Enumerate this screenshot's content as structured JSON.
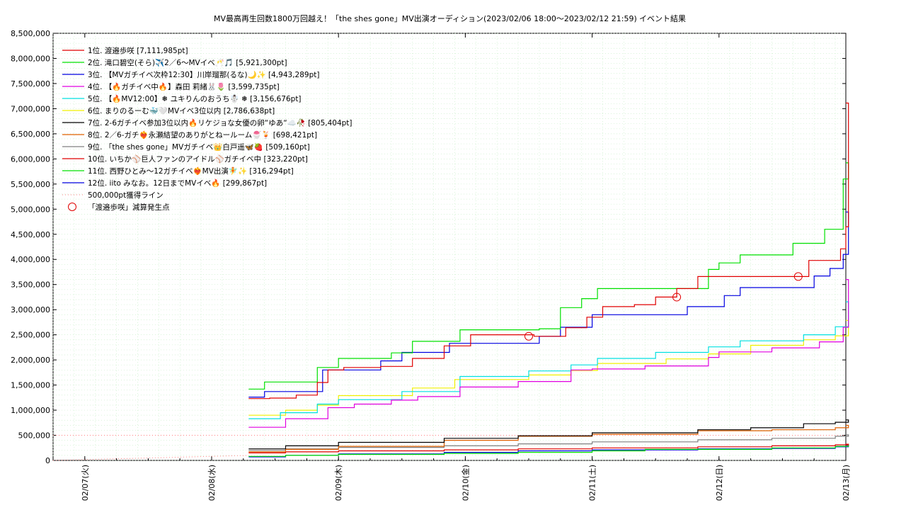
{
  "chart_data": {
    "type": "line",
    "title": "MV最高再生回数1800万回越え！「the shes gone」MV出演オーディション(2023/02/06 18:00〜2023/02/12 21:59)",
    "subtitle": "イベント結果",
    "xlabel": "",
    "ylabel": "",
    "x_start": "2023/02/06 18:00",
    "x_end": "2023/02/12 21:59",
    "xlim": [
      "2023/02/06 18:00",
      "2023/02/13 00:00"
    ],
    "ylim": [
      0,
      8500000
    ],
    "yticks": [
      "0",
      "500,000",
      "1,000,000",
      "1,500,000",
      "2,000,000",
      "2,500,000",
      "3,000,000",
      "3,500,000",
      "4,000,000",
      "4,500,000",
      "5,000,000",
      "5,500,000",
      "6,000,000",
      "6,500,000",
      "7,000,000",
      "7,500,000",
      "8,000,000",
      "8,500,000"
    ],
    "xticks": [
      {
        "label": "02/07(火)",
        "x": "2023/02/07 00:00"
      },
      {
        "label": "02/08(水)",
        "x": "2023/02/08 00:00"
      },
      {
        "label": "02/09(木)",
        "x": "2023/02/09 00:00"
      },
      {
        "label": "02/10(金)",
        "x": "2023/02/10 00:00"
      },
      {
        "label": "02/11(土)",
        "x": "2023/02/11 00:00"
      },
      {
        "label": "02/12(日)",
        "x": "2023/02/12 00:00"
      },
      {
        "label": "02/13(月)",
        "x": "2023/02/13 00:00"
      }
    ],
    "grid": true,
    "legend_position": "top-left",
    "series": [
      {
        "name": "1位. 渡邉歩咲 [7,111,985pt]",
        "color": "#e00000",
        "points": [
          [
            "2023/02/08 07:00",
            1230000
          ],
          [
            "2023/02/08 11:00",
            1240000
          ],
          [
            "2023/02/08 16:00",
            1300000
          ],
          [
            "2023/02/08 20:00",
            1550000
          ],
          [
            "2023/02/08 22:00",
            1800000
          ],
          [
            "2023/02/09 01:00",
            1850000
          ],
          [
            "2023/02/09 08:00",
            1870000
          ],
          [
            "2023/02/09 14:00",
            2030000
          ],
          [
            "2023/02/09 20:00",
            2280000
          ],
          [
            "2023/02/10 01:00",
            2500000
          ],
          [
            "2023/02/10 13:00",
            2470000
          ],
          [
            "2023/02/10 19:00",
            2640000
          ],
          [
            "2023/02/10 23:00",
            2850000
          ],
          [
            "2023/02/11 02:00",
            3060000
          ],
          [
            "2023/02/11 08:00",
            3100000
          ],
          [
            "2023/02/11 12:00",
            3250000
          ],
          [
            "2023/02/11 16:00",
            3420000
          ],
          [
            "2023/02/11 20:00",
            3660000
          ],
          [
            "2023/02/12 06:00",
            3660000
          ],
          [
            "2023/02/12 15:00",
            3660000
          ],
          [
            "2023/02/12 17:00",
            3980000
          ],
          [
            "2023/02/12 23:00",
            4210000
          ],
          [
            "2023/02/13 00:00",
            4650000
          ],
          [
            "2023/02/13 00:30",
            7111985
          ]
        ]
      },
      {
        "name": "2位. 滝口碧空(そら)✈️2／6〜MVイベ🥂🎵 [5,921,300pt]",
        "color": "#00e000",
        "points": [
          [
            "2023/02/08 07:00",
            1420000
          ],
          [
            "2023/02/08 10:00",
            1560000
          ],
          [
            "2023/02/08 20:00",
            1850000
          ],
          [
            "2023/02/09 00:00",
            2030000
          ],
          [
            "2023/02/09 10:00",
            2140000
          ],
          [
            "2023/02/09 14:00",
            2370000
          ],
          [
            "2023/02/09 23:00",
            2600000
          ],
          [
            "2023/02/10 14:00",
            2620000
          ],
          [
            "2023/02/10 18:00",
            3040000
          ],
          [
            "2023/02/10 22:00",
            3220000
          ],
          [
            "2023/02/11 01:00",
            3420000
          ],
          [
            "2023/02/11 22:00",
            3800000
          ],
          [
            "2023/02/12 00:00",
            3930000
          ],
          [
            "2023/02/12 04:00",
            4090000
          ],
          [
            "2023/02/12 14:00",
            4320000
          ],
          [
            "2023/02/12 20:00",
            4600000
          ],
          [
            "2023/02/12 23:30",
            5600000
          ],
          [
            "2023/02/13 00:30",
            5921300
          ]
        ]
      },
      {
        "name": "3位. 【MVガチイベ次枠12:30】川岸瑠那(るな)🌙✨ [4,943,289pt]",
        "color": "#0000e0",
        "points": [
          [
            "2023/02/08 07:00",
            1260000
          ],
          [
            "2023/02/08 10:00",
            1370000
          ],
          [
            "2023/02/08 21:00",
            1800000
          ],
          [
            "2023/02/09 08:00",
            1980000
          ],
          [
            "2023/02/09 12:00",
            2150000
          ],
          [
            "2023/02/09 21:00",
            2330000
          ],
          [
            "2023/02/10 14:00",
            2470000
          ],
          [
            "2023/02/10 18:00",
            2650000
          ],
          [
            "2023/02/11 00:00",
            2900000
          ],
          [
            "2023/02/11 18:00",
            3060000
          ],
          [
            "2023/02/12 01:00",
            3280000
          ],
          [
            "2023/02/12 04:00",
            3440000
          ],
          [
            "2023/02/12 18:00",
            3670000
          ],
          [
            "2023/02/12 21:00",
            3820000
          ],
          [
            "2023/02/12 23:30",
            4100000
          ],
          [
            "2023/02/13 00:30",
            4943289
          ]
        ]
      },
      {
        "name": "4位. 【🔥ガチイベ中🔥】森田 莉緒🐰🌷 [3,599,735pt]",
        "color": "#e000e0",
        "points": [
          [
            "2023/02/08 07:00",
            660000
          ],
          [
            "2023/02/08 14:00",
            830000
          ],
          [
            "2023/02/08 22:00",
            1050000
          ],
          [
            "2023/02/09 03:00",
            1120000
          ],
          [
            "2023/02/09 10:00",
            1200000
          ],
          [
            "2023/02/09 15:00",
            1270000
          ],
          [
            "2023/02/09 23:00",
            1460000
          ],
          [
            "2023/02/10 10:00",
            1570000
          ],
          [
            "2023/02/10 20:00",
            1800000
          ],
          [
            "2023/02/11 00:00",
            1820000
          ],
          [
            "2023/02/11 10:00",
            1880000
          ],
          [
            "2023/02/11 22:00",
            2050000
          ],
          [
            "2023/02/12 00:00",
            2160000
          ],
          [
            "2023/02/12 10:00",
            2240000
          ],
          [
            "2023/02/12 19:00",
            2360000
          ],
          [
            "2023/02/12 23:30",
            2650000
          ],
          [
            "2023/02/13 00:30",
            3599735
          ]
        ]
      },
      {
        "name": "5位. 【🔥MV12:00】❅ ユキりんのおうち☃️ ❅ [3,156,676pt]",
        "color": "#00e0e0",
        "points": [
          [
            "2023/02/08 07:00",
            830000
          ],
          [
            "2023/02/08 13:00",
            950000
          ],
          [
            "2023/02/08 20:00",
            1120000
          ],
          [
            "2023/02/09 00:00",
            1210000
          ],
          [
            "2023/02/09 12:00",
            1370000
          ],
          [
            "2023/02/09 23:00",
            1670000
          ],
          [
            "2023/02/10 12:00",
            1780000
          ],
          [
            "2023/02/10 20:00",
            1900000
          ],
          [
            "2023/02/11 01:00",
            2030000
          ],
          [
            "2023/02/11 12:00",
            2150000
          ],
          [
            "2023/02/11 22:00",
            2260000
          ],
          [
            "2023/02/12 04:00",
            2380000
          ],
          [
            "2023/02/12 16:00",
            2500000
          ],
          [
            "2023/02/12 22:00",
            2660000
          ],
          [
            "2023/02/13 00:30",
            3156676
          ]
        ]
      },
      {
        "name": "6位. まりのるーむ🐳🤍MVイベ3位以内 [2,786,638pt]",
        "color": "#f0f000",
        "points": [
          [
            "2023/02/08 07:00",
            900000
          ],
          [
            "2023/02/08 14:00",
            1000000
          ],
          [
            "2023/02/08 20:00",
            1100000
          ],
          [
            "2023/02/09 00:00",
            1290000
          ],
          [
            "2023/02/09 14:00",
            1440000
          ],
          [
            "2023/02/09 22:00",
            1610000
          ],
          [
            "2023/02/10 12:00",
            1700000
          ],
          [
            "2023/02/10 20:00",
            1790000
          ],
          [
            "2023/02/11 01:00",
            1930000
          ],
          [
            "2023/02/11 14:00",
            2020000
          ],
          [
            "2023/02/11 22:00",
            2120000
          ],
          [
            "2023/02/12 06:00",
            2290000
          ],
          [
            "2023/02/12 16:00",
            2400000
          ],
          [
            "2023/02/12 22:00",
            2480000
          ],
          [
            "2023/02/13 00:30",
            2786638
          ]
        ]
      },
      {
        "name": "7位. 2-6ガチイベ参加3位以内🔥リケジョな女優の卵“ゆあ“☁️🥀 [805,404pt]",
        "color": "#000000",
        "points": [
          [
            "2023/02/08 07:00",
            230000
          ],
          [
            "2023/02/08 14:00",
            290000
          ],
          [
            "2023/02/09 00:00",
            360000
          ],
          [
            "2023/02/09 20:00",
            440000
          ],
          [
            "2023/02/10 10:00",
            490000
          ],
          [
            "2023/02/11 00:00",
            550000
          ],
          [
            "2023/02/11 20:00",
            610000
          ],
          [
            "2023/02/12 06:00",
            650000
          ],
          [
            "2023/02/12 16:00",
            730000
          ],
          [
            "2023/02/12 22:00",
            760000
          ],
          [
            "2023/02/13 00:30",
            805404
          ]
        ]
      },
      {
        "name": "8位. 2／6-ガチ❤️‍🔥永瀬結望のありがとねールーム🍧🍹 [698,421pt]",
        "color": "#e06000",
        "points": [
          [
            "2023/02/08 07:00",
            170000
          ],
          [
            "2023/02/08 14:00",
            220000
          ],
          [
            "2023/02/09 00:00",
            280000
          ],
          [
            "2023/02/09 20:00",
            400000
          ],
          [
            "2023/02/10 10:00",
            480000
          ],
          [
            "2023/02/11 00:00",
            520000
          ],
          [
            "2023/02/11 20:00",
            590000
          ],
          [
            "2023/02/12 10:00",
            610000
          ],
          [
            "2023/02/12 22:00",
            650000
          ],
          [
            "2023/02/13 00:30",
            698421
          ]
        ]
      },
      {
        "name": "9位. 「the shes gone」MVガチイベ👑白戸遥🦋🍓 [509,160pt]",
        "color": "#808080",
        "points": [
          [
            "2023/02/08 07:00",
            200000
          ],
          [
            "2023/02/08 14:00",
            230000
          ],
          [
            "2023/02/09 00:00",
            260000
          ],
          [
            "2023/02/09 20:00",
            290000
          ],
          [
            "2023/02/10 10:00",
            330000
          ],
          [
            "2023/02/11 00:00",
            370000
          ],
          [
            "2023/02/11 20:00",
            410000
          ],
          [
            "2023/02/12 10:00",
            440000
          ],
          [
            "2023/02/12 22:00",
            480000
          ],
          [
            "2023/02/13 00:30",
            509160
          ]
        ]
      },
      {
        "name": "10位. いちか⚾巨人ファンのアイドル⚾ガチイベ中 [323,220pt]",
        "color": "#e00000",
        "points": [
          [
            "2023/02/08 07:00",
            150000
          ],
          [
            "2023/02/08 14:00",
            170000
          ],
          [
            "2023/02/09 00:00",
            190000
          ],
          [
            "2023/02/09 20:00",
            210000
          ],
          [
            "2023/02/10 10:00",
            230000
          ],
          [
            "2023/02/11 00:00",
            250000
          ],
          [
            "2023/02/11 20:00",
            270000
          ],
          [
            "2023/02/12 10:00",
            290000
          ],
          [
            "2023/02/12 22:00",
            310000
          ],
          [
            "2023/02/13 00:30",
            323220
          ]
        ]
      },
      {
        "name": "11位. 西野ひとみ〜12ガチイベ❤️‍🔥MV出演🧚✨ [316,294pt]",
        "color": "#00e000",
        "points": [
          [
            "2023/02/08 07:00",
            80000
          ],
          [
            "2023/02/08 14:00",
            100000
          ],
          [
            "2023/02/09 00:00",
            120000
          ],
          [
            "2023/02/09 20:00",
            140000
          ],
          [
            "2023/02/10 10:00",
            160000
          ],
          [
            "2023/02/11 00:00",
            190000
          ],
          [
            "2023/02/11 10:00",
            220000
          ],
          [
            "2023/02/12 10:00",
            250000
          ],
          [
            "2023/02/12 22:00",
            280000
          ],
          [
            "2023/02/13 00:30",
            316294
          ]
        ]
      },
      {
        "name": "12位. iito みなお。12日までMVイベ🔥 [299,867pt]",
        "color": "#0000e0",
        "points": [
          [
            "2023/02/08 07:00",
            70000
          ],
          [
            "2023/02/08 14:00",
            100000
          ],
          [
            "2023/02/09 00:00",
            130000
          ],
          [
            "2023/02/09 20:00",
            160000
          ],
          [
            "2023/02/10 10:00",
            190000
          ],
          [
            "2023/02/11 00:00",
            210000
          ],
          [
            "2023/02/11 20:00",
            230000
          ],
          [
            "2023/02/12 10:00",
            240000
          ],
          [
            "2023/02/12 22:00",
            270000
          ],
          [
            "2023/02/13 00:30",
            299867
          ]
        ]
      }
    ],
    "threshold": {
      "name": "500,000pt獲得ライン",
      "value": 500000,
      "color": "#ff8080"
    },
    "markers": {
      "name": "「渡邉歩咲」減算発生点",
      "color": "#e00000",
      "points": [
        [
          "2023/02/10 12:00",
          2470000
        ],
        [
          "2023/02/11 16:00",
          3250000
        ],
        [
          "2023/02/12 15:00",
          3660000
        ]
      ]
    }
  }
}
